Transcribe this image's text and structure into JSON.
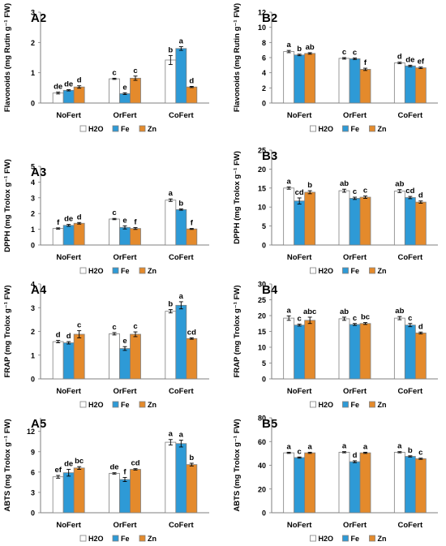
{
  "figure": {
    "series_colors": {
      "H2O": "#ffffff",
      "Fe": "#2e9ad6",
      "Zn": "#e48a2c"
    },
    "error_bar_color": "#000000"
  },
  "chart_data": [
    {
      "panel": "A2",
      "type": "bar",
      "ylabel": "Flavonoids (mg Rutin g⁻¹ FW)",
      "categories": [
        "NoFert",
        "OrFert",
        "CoFert"
      ],
      "ylim": [
        0,
        3
      ],
      "yticks": [
        0,
        1,
        2,
        3
      ],
      "legend": [
        "H2O",
        "Fe",
        "Zn"
      ],
      "legend_position": "bottom",
      "series": [
        {
          "name": "H2O",
          "values": [
            0.33,
            0.8,
            1.42
          ],
          "errors": [
            0.03,
            0.02,
            0.15
          ],
          "letters": [
            "de",
            "c",
            "b"
          ]
        },
        {
          "name": "Fe",
          "values": [
            0.42,
            0.31,
            1.8
          ],
          "errors": [
            0.02,
            0.03,
            0.06
          ],
          "letters": [
            "de",
            "e",
            "a"
          ]
        },
        {
          "name": "Zn",
          "values": [
            0.53,
            0.82,
            0.53
          ],
          "errors": [
            0.04,
            0.07,
            0.02
          ],
          "letters": [
            "d",
            "c",
            "d"
          ]
        }
      ]
    },
    {
      "panel": "B2",
      "type": "bar",
      "ylabel": "Flavonoids (mg Rutin g⁻¹ FW)",
      "categories": [
        "NoFert",
        "OrFert",
        "CoFert"
      ],
      "ylim": [
        0,
        12
      ],
      "yticks": [
        0,
        2,
        4,
        6,
        8,
        10,
        12
      ],
      "legend": [
        "H2O",
        "Fe",
        "Zn"
      ],
      "legend_position": "bottom",
      "series": [
        {
          "name": "H2O",
          "values": [
            6.8,
            5.9,
            5.3
          ],
          "errors": [
            0.15,
            0.1,
            0.1
          ],
          "letters": [
            "a",
            "c",
            "d"
          ]
        },
        {
          "name": "Fe",
          "values": [
            6.35,
            5.85,
            4.9
          ],
          "errors": [
            0.1,
            0.1,
            0.1
          ],
          "letters": [
            "b",
            "c",
            "de"
          ]
        },
        {
          "name": "Zn",
          "values": [
            6.55,
            4.45,
            4.65
          ],
          "errors": [
            0.1,
            0.15,
            0.1
          ],
          "letters": [
            "ab",
            "f",
            "ef"
          ]
        }
      ]
    },
    {
      "panel": "A3",
      "type": "bar",
      "ylabel": "DPPH (mg Trolox g⁻¹ FW)",
      "categories": [
        "NoFert",
        "OrFert",
        "CoFert"
      ],
      "ylim": [
        0,
        5
      ],
      "yticks": [
        0,
        1,
        2,
        3,
        4,
        5
      ],
      "legend": [
        "H2O",
        "Fe",
        "Zn"
      ],
      "legend_position": "bottom",
      "series": [
        {
          "name": "H2O",
          "values": [
            1.05,
            1.65,
            2.85
          ],
          "errors": [
            0.04,
            0.04,
            0.08
          ],
          "letters": [
            "f",
            "c",
            "a"
          ]
        },
        {
          "name": "Fe",
          "values": [
            1.25,
            1.12,
            2.25
          ],
          "errors": [
            0.06,
            0.1,
            0.04
          ],
          "letters": [
            "de",
            "e",
            "b"
          ]
        },
        {
          "name": "Zn",
          "values": [
            1.38,
            1.05,
            1.02
          ],
          "errors": [
            0.05,
            0.06,
            0.03
          ],
          "letters": [
            "d",
            "f",
            "f"
          ]
        }
      ]
    },
    {
      "panel": "B3",
      "type": "bar",
      "ylabel": "DPPH (mg Trolox g⁻¹ FW)",
      "categories": [
        "NoFert",
        "OrFert",
        "CoFert"
      ],
      "ylim": [
        0,
        25
      ],
      "yticks": [
        0,
        5,
        10,
        15,
        20,
        25
      ],
      "legend": [
        "H2O",
        "Fe",
        "Zn"
      ],
      "legend_position": "bottom",
      "series": [
        {
          "name": "H2O",
          "values": [
            15.0,
            14.3,
            14.2
          ],
          "errors": [
            0.3,
            0.4,
            0.4
          ],
          "letters": [
            "a",
            "ab",
            "ab"
          ]
        },
        {
          "name": "Fe",
          "values": [
            11.6,
            12.3,
            12.5
          ],
          "errors": [
            0.8,
            0.3,
            0.3
          ],
          "letters": [
            "cd",
            "c",
            "cd"
          ]
        },
        {
          "name": "Zn",
          "values": [
            13.9,
            12.6,
            11.3
          ],
          "errors": [
            0.4,
            0.3,
            0.3
          ],
          "letters": [
            "b",
            "c",
            "d"
          ]
        }
      ]
    },
    {
      "panel": "A4",
      "type": "bar",
      "ylabel": "FRAP (mg Trolox g⁻¹ FW)",
      "categories": [
        "NoFert",
        "OrFert",
        "CoFert"
      ],
      "ylim": [
        0,
        4
      ],
      "yticks": [
        0,
        1,
        2,
        3,
        4
      ],
      "legend": [
        "H2O",
        "Fe",
        "Zn"
      ],
      "legend_position": "bottom",
      "series": [
        {
          "name": "H2O",
          "values": [
            1.57,
            1.9,
            2.85
          ],
          "errors": [
            0.05,
            0.05,
            0.07
          ],
          "letters": [
            "d",
            "c",
            "b"
          ]
        },
        {
          "name": "Fe",
          "values": [
            1.52,
            1.28,
            3.1
          ],
          "errors": [
            0.05,
            0.08,
            0.15
          ],
          "letters": [
            "d",
            "e",
            "a"
          ]
        },
        {
          "name": "Zn",
          "values": [
            1.88,
            1.88,
            1.7
          ],
          "errors": [
            0.15,
            0.1,
            0.03
          ],
          "letters": [
            "c",
            "c",
            "cd"
          ]
        }
      ]
    },
    {
      "panel": "B4",
      "type": "bar",
      "ylabel": "FRAP (mg Trolox g⁻¹ FW)",
      "categories": [
        "NoFert",
        "OrFert",
        "CoFert"
      ],
      "ylim": [
        0,
        30
      ],
      "yticks": [
        0,
        5,
        10,
        15,
        20,
        25,
        30
      ],
      "legend": [
        "H2O",
        "Fe",
        "Zn"
      ],
      "legend_position": "bottom",
      "series": [
        {
          "name": "H2O",
          "values": [
            19.2,
            19.0,
            19.2
          ],
          "errors": [
            0.7,
            0.5,
            0.5
          ],
          "letters": [
            "a",
            "ab",
            "ab"
          ]
        },
        {
          "name": "Fe",
          "values": [
            17.0,
            17.2,
            17.0
          ],
          "errors": [
            0.3,
            0.3,
            0.5
          ],
          "letters": [
            "c",
            "c",
            "c"
          ]
        },
        {
          "name": "Zn",
          "values": [
            18.5,
            17.5,
            14.5
          ],
          "errors": [
            1.0,
            0.3,
            0.3
          ],
          "letters": [
            "abc",
            "bc",
            "d"
          ]
        }
      ]
    },
    {
      "panel": "A5",
      "type": "bar",
      "ylabel": "ABTS (mg Trolox g⁻¹ FW)",
      "categories": [
        "NoFert",
        "OrFert",
        "CoFert"
      ],
      "ylim": [
        0,
        14
      ],
      "yticks": [
        0,
        3,
        6,
        9,
        12
      ],
      "legend": [
        "H2O",
        "Fe",
        "Zn"
      ],
      "legend_position": "bottom",
      "series": [
        {
          "name": "H2O",
          "values": [
            5.3,
            5.8,
            10.4
          ],
          "errors": [
            0.2,
            0.1,
            0.4
          ],
          "letters": [
            "ef",
            "de",
            "a"
          ]
        },
        {
          "name": "Fe",
          "values": [
            5.9,
            4.9,
            10.2
          ],
          "errors": [
            0.5,
            0.3,
            0.5
          ],
          "letters": [
            "de",
            "f",
            "a"
          ]
        },
        {
          "name": "Zn",
          "values": [
            6.6,
            6.4,
            7.1
          ],
          "errors": [
            0.2,
            0.1,
            0.2
          ],
          "letters": [
            "bc",
            "cd",
            "b"
          ]
        }
      ]
    },
    {
      "panel": "B5",
      "type": "bar",
      "ylabel": "ABTS (mg Trolox g⁻¹ FW)",
      "categories": [
        "NoFert",
        "OrFert",
        "CoFert"
      ],
      "ylim": [
        0,
        80
      ],
      "yticks": [
        0,
        20,
        40,
        60,
        80
      ],
      "legend": [
        "H2O",
        "Fe",
        "Zn"
      ],
      "legend_position": "bottom",
      "series": [
        {
          "name": "H2O",
          "values": [
            50.5,
            51.0,
            51.0
          ],
          "errors": [
            0.5,
            0.5,
            0.5
          ],
          "letters": [
            "a",
            "a",
            "a"
          ]
        },
        {
          "name": "Fe",
          "values": [
            46.5,
            43.0,
            47.5
          ],
          "errors": [
            0.5,
            0.8,
            0.5
          ],
          "letters": [
            "c",
            "d",
            "b"
          ]
        },
        {
          "name": "Zn",
          "values": [
            50.5,
            50.5,
            45.5
          ],
          "errors": [
            0.5,
            0.5,
            0.5
          ],
          "letters": [
            "a",
            "a",
            "c"
          ]
        }
      ]
    }
  ]
}
